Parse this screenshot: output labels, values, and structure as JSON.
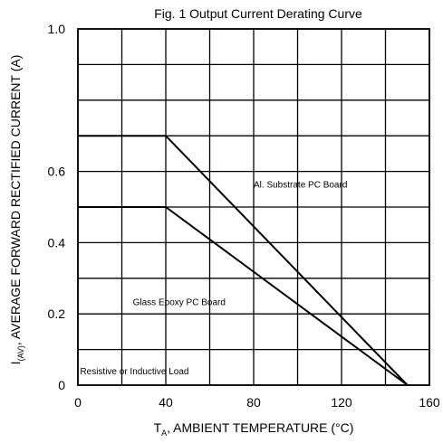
{
  "chart_data": {
    "type": "line",
    "title": "Fig. 1  Output Current Derating Curve",
    "xlabel": {
      "main": "T",
      "sub": "A",
      "rest": ", AMBIENT TEMPERATURE (°C)"
    },
    "ylabel": {
      "main": "I",
      "sub": "(AV)",
      "rest": ", AVERAGE FORWARD RECTIFIED CURRENT (A)"
    },
    "xlim": [
      0,
      160
    ],
    "ylim": [
      0,
      1.0
    ],
    "x_ticks": [
      0,
      40,
      80,
      120,
      160
    ],
    "x_tick_labels": [
      "0",
      "40",
      "80",
      "120",
      "160"
    ],
    "y_ticks": [
      0,
      0.2,
      0.4,
      0.6,
      0.8,
      1.0
    ],
    "y_tick_labels": [
      "0",
      "0.2",
      "0.4",
      "0.6",
      "",
      "1.0"
    ],
    "x_grid": [
      0,
      20,
      40,
      60,
      80,
      100,
      120,
      140,
      160
    ],
    "y_grid": [
      0,
      0.1,
      0.2,
      0.3,
      0.4,
      0.5,
      0.6,
      0.7,
      0.8,
      0.9,
      1.0
    ],
    "grid": true,
    "series": [
      {
        "x": [
          0,
          40,
          150
        ],
        "y": [
          0.7,
          0.7,
          0
        ]
      },
      {
        "x": [
          0,
          40,
          150
        ],
        "y": [
          0.5,
          0.5,
          0
        ]
      }
    ],
    "annotations": [
      {
        "text": "Al. Substrate PC Board",
        "x": 80,
        "y": 0.555
      },
      {
        "text": "Glass Epoxy PC Board",
        "x": 25,
        "y": 0.225
      },
      {
        "text": "Resistive or Inductive Load",
        "x": 1,
        "y": 0.03
      }
    ]
  }
}
